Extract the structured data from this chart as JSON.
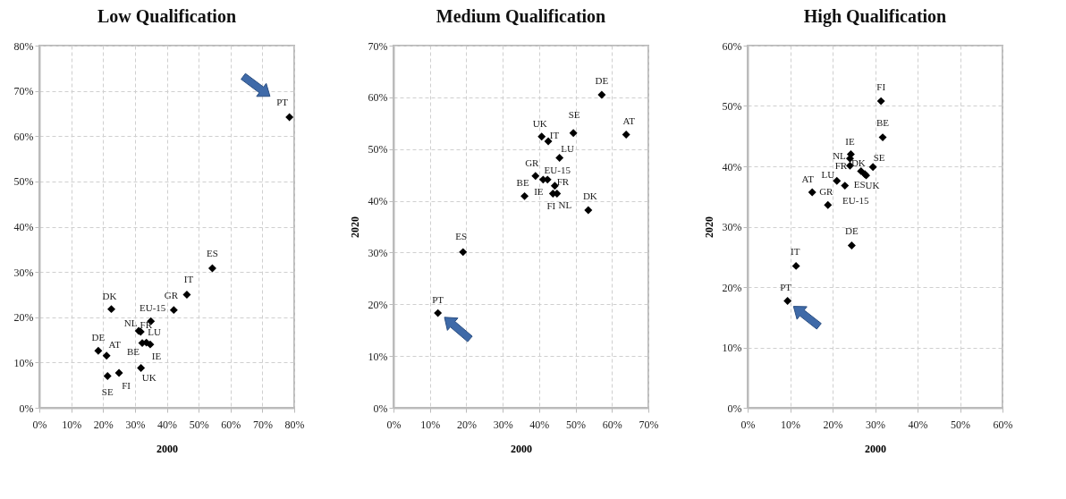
{
  "chart_data": [
    {
      "type": "scatter",
      "title": "Low Qualification",
      "xlabel": "2000",
      "color": "#000000",
      "marker": "diamond",
      "grid": true,
      "x": [
        78.5,
        54.3,
        46.3,
        42.2,
        22.6,
        35.0,
        31.2,
        31.8,
        32.3,
        33.6,
        34.8,
        18.5,
        21.1,
        21.4,
        25.0,
        31.9
      ],
      "values": [
        64.2,
        30.8,
        25.0,
        21.6,
        21.8,
        19.1,
        17.0,
        16.8,
        14.3,
        14.4,
        14.0,
        12.6,
        11.5,
        7.0,
        7.7,
        8.8
      ],
      "xlim": [
        0,
        80
      ],
      "ylim": [
        0,
        80
      ],
      "xticks": [
        {
          "value": 0,
          "label": "0%"
        },
        {
          "value": 10,
          "label": "10%"
        },
        {
          "value": 20,
          "label": "20%"
        },
        {
          "value": 30,
          "label": "30%"
        },
        {
          "value": 40,
          "label": "40%"
        },
        {
          "value": 50,
          "label": "50%"
        },
        {
          "value": 60,
          "label": "60%"
        },
        {
          "value": 70,
          "label": "70%"
        },
        {
          "value": 80,
          "label": "80%"
        }
      ],
      "yticks": [
        {
          "value": 0,
          "label": "0%"
        },
        {
          "value": 10,
          "label": "10%"
        },
        {
          "value": 20,
          "label": "20%"
        },
        {
          "value": 30,
          "label": "30%"
        },
        {
          "value": 40,
          "label": "40%"
        },
        {
          "value": 50,
          "label": "50%"
        },
        {
          "value": 60,
          "label": "60%"
        },
        {
          "value": 70,
          "label": "70%"
        },
        {
          "value": 80,
          "label": "80%"
        }
      ],
      "annotations": [
        {
          "text": "PT",
          "x": 78.5,
          "y": 64.2
        },
        {
          "text": "ES",
          "x": 54.3,
          "y": 30.8
        },
        {
          "text": "IT",
          "x": 46.3,
          "y": 25.0
        },
        {
          "text": "GR",
          "x": 42.2,
          "y": 21.6
        },
        {
          "text": "DK",
          "x": 22.6,
          "y": 21.8
        },
        {
          "text": "EU-15",
          "x": 35.0,
          "y": 19.1
        },
        {
          "text": "NL",
          "x": 31.2,
          "y": 17.0
        },
        {
          "text": "FR",
          "x": 31.8,
          "y": 16.8
        },
        {
          "text": "BE",
          "x": 32.3,
          "y": 14.3
        },
        {
          "text": "LU",
          "x": 33.6,
          "y": 14.4
        },
        {
          "text": "IE",
          "x": 34.8,
          "y": 14.0
        },
        {
          "text": "DE",
          "x": 18.5,
          "y": 12.6
        },
        {
          "text": "AT",
          "x": 21.1,
          "y": 11.5
        },
        {
          "text": "SE",
          "x": 21.4,
          "y": 7.0
        },
        {
          "text": "FI",
          "x": 25.0,
          "y": 7.7
        },
        {
          "text": "UK",
          "x": 31.9,
          "y": 8.8
        }
      ]
    },
    {
      "type": "scatter",
      "title": "Medium Qualification",
      "xlabel": "2000",
      "ylabel": "2020",
      "color": "#000000",
      "marker": "diamond",
      "grid": true,
      "x": [
        57.2,
        63.9,
        49.4,
        40.7,
        42.5,
        45.6,
        39.0,
        42.3,
        41.1,
        44.3,
        43.8,
        44.9,
        36.0,
        53.5,
        19.1,
        12.2
      ],
      "values": [
        60.5,
        52.8,
        53.1,
        52.4,
        51.5,
        48.3,
        44.8,
        44.1,
        44.1,
        42.9,
        41.4,
        41.4,
        40.9,
        38.2,
        30.1,
        18.3
      ],
      "xlim": [
        0,
        70
      ],
      "ylim": [
        0,
        70
      ],
      "xticks": [
        {
          "value": 0,
          "label": "0%"
        },
        {
          "value": 10,
          "label": "10%"
        },
        {
          "value": 20,
          "label": "20%"
        },
        {
          "value": 30,
          "label": "30%"
        },
        {
          "value": 40,
          "label": "40%"
        },
        {
          "value": 50,
          "label": "50%"
        },
        {
          "value": 60,
          "label": "60%"
        },
        {
          "value": 70,
          "label": "70%"
        }
      ],
      "yticks": [
        {
          "value": 0,
          "label": "0%"
        },
        {
          "value": 10,
          "label": "10%"
        },
        {
          "value": 20,
          "label": "20%"
        },
        {
          "value": 30,
          "label": "30%"
        },
        {
          "value": 40,
          "label": "40%"
        },
        {
          "value": 50,
          "label": "50%"
        },
        {
          "value": 60,
          "label": "60%"
        },
        {
          "value": 70,
          "label": "70%"
        }
      ],
      "annotations": [
        {
          "text": "DE",
          "x": 57.2,
          "y": 60.5
        },
        {
          "text": "AT",
          "x": 63.9,
          "y": 52.8
        },
        {
          "text": "SE",
          "x": 49.4,
          "y": 53.1
        },
        {
          "text": "UK",
          "x": 40.7,
          "y": 52.4
        },
        {
          "text": "IT",
          "x": 42.5,
          "y": 51.5
        },
        {
          "text": "LU",
          "x": 45.6,
          "y": 48.3
        },
        {
          "text": "GR",
          "x": 39.0,
          "y": 44.8
        },
        {
          "text": "EU-15",
          "x": 42.3,
          "y": 44.1
        },
        {
          "text": "IE",
          "x": 41.1,
          "y": 44.1
        },
        {
          "text": "FR",
          "x": 44.3,
          "y": 42.9
        },
        {
          "text": "FI",
          "x": 43.8,
          "y": 41.4
        },
        {
          "text": "NL",
          "x": 44.9,
          "y": 41.4
        },
        {
          "text": "BE",
          "x": 36.0,
          "y": 40.9
        },
        {
          "text": "DK",
          "x": 53.5,
          "y": 38.2
        },
        {
          "text": "ES",
          "x": 19.1,
          "y": 30.1
        },
        {
          "text": "PT",
          "x": 12.2,
          "y": 18.3
        }
      ]
    },
    {
      "type": "scatter",
      "title": "High Qualification",
      "xlabel": "2000",
      "ylabel": "2020",
      "color": "#000000",
      "marker": "diamond",
      "grid": true,
      "x": [
        31.4,
        31.8,
        24.3,
        24.1,
        24.1,
        26.7,
        27.6,
        27.9,
        29.5,
        21.0,
        22.9,
        15.2,
        18.9,
        24.5,
        11.4,
        9.4
      ],
      "values": [
        50.8,
        44.8,
        42.0,
        41.3,
        40.1,
        39.2,
        38.7,
        38.5,
        39.9,
        37.6,
        36.8,
        35.7,
        33.6,
        26.9,
        23.5,
        17.7
      ],
      "xlim": [
        0,
        60
      ],
      "ylim": [
        0,
        60
      ],
      "xticks": [
        {
          "value": 0,
          "label": "0%"
        },
        {
          "value": 10,
          "label": "10%"
        },
        {
          "value": 20,
          "label": "20%"
        },
        {
          "value": 30,
          "label": "30%"
        },
        {
          "value": 40,
          "label": "40%"
        },
        {
          "value": 50,
          "label": "50%"
        },
        {
          "value": 60,
          "label": "60%"
        }
      ],
      "yticks": [
        {
          "value": 0,
          "label": "0%"
        },
        {
          "value": 10,
          "label": "10%"
        },
        {
          "value": 20,
          "label": "20%"
        },
        {
          "value": 30,
          "label": "30%"
        },
        {
          "value": 40,
          "label": "40%"
        },
        {
          "value": 50,
          "label": "50%"
        },
        {
          "value": 60,
          "label": "60%"
        }
      ],
      "annotations": [
        {
          "text": "FI",
          "x": 31.4,
          "y": 50.8
        },
        {
          "text": "BE",
          "x": 31.8,
          "y": 44.8
        },
        {
          "text": "IE",
          "x": 24.3,
          "y": 42.0
        },
        {
          "text": "NL",
          "x": 24.1,
          "y": 41.3
        },
        {
          "text": "FR",
          "x": 24.1,
          "y": 40.1
        },
        {
          "text": "DK",
          "x": 26.7,
          "y": 39.2
        },
        {
          "text": "ES",
          "x": 27.6,
          "y": 38.7
        },
        {
          "text": "UK",
          "x": 27.9,
          "y": 38.5
        },
        {
          "text": "SE",
          "x": 29.5,
          "y": 39.9
        },
        {
          "text": "LU",
          "x": 21.0,
          "y": 37.6
        },
        {
          "text": "EU-15",
          "x": 22.9,
          "y": 36.8
        },
        {
          "text": "AT",
          "x": 15.2,
          "y": 35.7
        },
        {
          "text": "GR",
          "x": 18.9,
          "y": 33.6
        },
        {
          "text": "DE",
          "x": 24.5,
          "y": 26.9
        },
        {
          "text": "IT",
          "x": 11.4,
          "y": 23.5
        },
        {
          "text": "PT",
          "x": 9.4,
          "y": 17.7
        }
      ]
    }
  ]
}
